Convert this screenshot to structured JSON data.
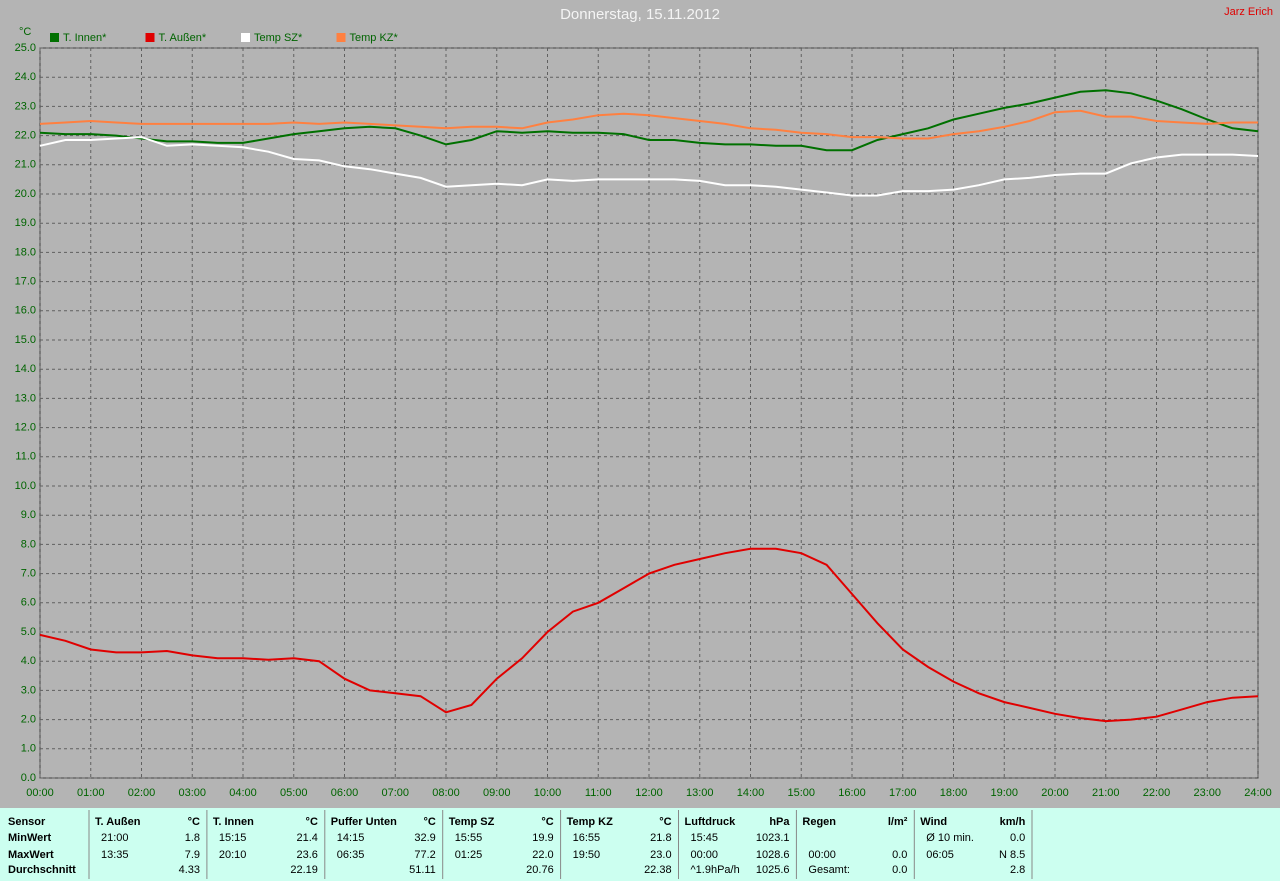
{
  "chart_data": {
    "type": "line",
    "title": "Donnerstag, 15.11.2012",
    "author": "Jarz Erich",
    "y_label": "°C",
    "x": [
      0,
      0.5,
      1,
      1.5,
      2,
      2.5,
      3,
      3.5,
      4,
      4.5,
      5,
      5.5,
      6,
      6.5,
      7,
      7.5,
      8,
      8.5,
      9,
      9.5,
      10,
      10.5,
      11,
      11.5,
      12,
      12.5,
      13,
      13.5,
      14,
      14.5,
      15,
      15.5,
      16,
      16.5,
      17,
      17.5,
      18,
      18.5,
      19,
      19.5,
      20,
      20.5,
      21,
      21.5,
      22,
      22.5,
      23,
      23.5,
      24
    ],
    "series": [
      {
        "name": "T. Innen*",
        "color": "#007000",
        "values": [
          22.1,
          22.05,
          22.05,
          22.0,
          21.9,
          21.8,
          21.8,
          21.75,
          21.75,
          21.9,
          22.05,
          22.15,
          22.25,
          22.3,
          22.25,
          22.0,
          21.7,
          21.85,
          22.15,
          22.1,
          22.15,
          22.1,
          22.1,
          22.05,
          21.85,
          21.85,
          21.75,
          21.7,
          21.7,
          21.65,
          21.65,
          21.5,
          21.5,
          21.85,
          22.05,
          22.25,
          22.55,
          22.75,
          22.95,
          23.1,
          23.3,
          23.5,
          23.55,
          23.45,
          23.2,
          22.9,
          22.55,
          22.25,
          22.15
        ]
      },
      {
        "name": "T. Außen*",
        "color": "#e00000",
        "values": [
          4.9,
          4.7,
          4.4,
          4.3,
          4.3,
          4.35,
          4.2,
          4.1,
          4.1,
          4.05,
          4.1,
          4.0,
          3.4,
          3.0,
          2.9,
          2.8,
          2.25,
          2.5,
          3.4,
          4.1,
          5.0,
          5.7,
          6.0,
          6.5,
          7.0,
          7.3,
          7.5,
          7.7,
          7.85,
          7.85,
          7.7,
          7.3,
          6.3,
          5.3,
          4.4,
          3.8,
          3.3,
          2.9,
          2.6,
          2.4,
          2.2,
          2.05,
          1.95,
          2.0,
          2.1,
          2.35,
          2.6,
          2.75,
          2.8
        ]
      },
      {
        "name": "Temp SZ*",
        "color": "#ffffff",
        "values": [
          21.65,
          21.85,
          21.85,
          21.9,
          21.95,
          21.65,
          21.7,
          21.65,
          21.6,
          21.45,
          21.2,
          21.15,
          20.95,
          20.85,
          20.7,
          20.55,
          20.25,
          20.3,
          20.35,
          20.3,
          20.5,
          20.45,
          20.5,
          20.5,
          20.5,
          20.5,
          20.45,
          20.3,
          20.3,
          20.25,
          20.15,
          20.05,
          19.95,
          19.95,
          20.1,
          20.1,
          20.15,
          20.3,
          20.5,
          20.55,
          20.65,
          20.7,
          20.7,
          21.05,
          21.25,
          21.35,
          21.35,
          21.35,
          21.3
        ]
      },
      {
        "name": "Temp KZ*",
        "color": "#ff8040",
        "values": [
          22.4,
          22.45,
          22.5,
          22.45,
          22.4,
          22.4,
          22.4,
          22.4,
          22.4,
          22.4,
          22.45,
          22.4,
          22.45,
          22.4,
          22.35,
          22.3,
          22.25,
          22.3,
          22.3,
          22.25,
          22.45,
          22.55,
          22.7,
          22.75,
          22.7,
          22.6,
          22.5,
          22.4,
          22.25,
          22.2,
          22.1,
          22.05,
          21.95,
          21.95,
          21.9,
          21.9,
          22.05,
          22.15,
          22.3,
          22.5,
          22.8,
          22.85,
          22.65,
          22.65,
          22.5,
          22.45,
          22.4,
          22.45,
          22.45
        ]
      }
    ],
    "xlim": [
      0,
      24
    ],
    "xticks": [
      {
        "value": 0,
        "label": "00:00"
      },
      {
        "value": 1,
        "label": "01:00"
      },
      {
        "value": 2,
        "label": "02:00"
      },
      {
        "value": 3,
        "label": "03:00"
      },
      {
        "value": 4,
        "label": "04:00"
      },
      {
        "value": 5,
        "label": "05:00"
      },
      {
        "value": 6,
        "label": "06:00"
      },
      {
        "value": 7,
        "label": "07:00"
      },
      {
        "value": 8,
        "label": "08:00"
      },
      {
        "value": 9,
        "label": "09:00"
      },
      {
        "value": 10,
        "label": "10:00"
      },
      {
        "value": 11,
        "label": "11:00"
      },
      {
        "value": 12,
        "label": "12:00"
      },
      {
        "value": 13,
        "label": "13:00"
      },
      {
        "value": 14,
        "label": "14:00"
      },
      {
        "value": 15,
        "label": "15:00"
      },
      {
        "value": 16,
        "label": "16:00"
      },
      {
        "value": 17,
        "label": "17:00"
      },
      {
        "value": 18,
        "label": "18:00"
      },
      {
        "value": 19,
        "label": "19:00"
      },
      {
        "value": 20,
        "label": "20:00"
      },
      {
        "value": 21,
        "label": "21:00"
      },
      {
        "value": 22,
        "label": "22:00"
      },
      {
        "value": 23,
        "label": "23:00"
      },
      {
        "value": 24,
        "label": "24:00"
      }
    ],
    "ylim": [
      0,
      25
    ],
    "yticks": [
      {
        "value": 0,
        "label": "0.0"
      },
      {
        "value": 1,
        "label": "1.0"
      },
      {
        "value": 2,
        "label": "2.0"
      },
      {
        "value": 3,
        "label": "3.0"
      },
      {
        "value": 4,
        "label": "4.0"
      },
      {
        "value": 5,
        "label": "5.0"
      },
      {
        "value": 6,
        "label": "6.0"
      },
      {
        "value": 7,
        "label": "7.0"
      },
      {
        "value": 8,
        "label": "8.0"
      },
      {
        "value": 9,
        "label": "9.0"
      },
      {
        "value": 10,
        "label": "10.0"
      },
      {
        "value": 11,
        "label": "11.0"
      },
      {
        "value": 12,
        "label": "12.0"
      },
      {
        "value": 13,
        "label": "13.0"
      },
      {
        "value": 14,
        "label": "14.0"
      },
      {
        "value": 15,
        "label": "15.0"
      },
      {
        "value": 16,
        "label": "16.0"
      },
      {
        "value": 17,
        "label": "17.0"
      },
      {
        "value": 18,
        "label": "18.0"
      },
      {
        "value": 19,
        "label": "19.0"
      },
      {
        "value": 20,
        "label": "20.0"
      },
      {
        "value": 21,
        "label": "21.0"
      },
      {
        "value": 22,
        "label": "22.0"
      },
      {
        "value": 23,
        "label": "23.0"
      },
      {
        "value": 24,
        "label": "24.0"
      },
      {
        "value": 25,
        "label": "25.0"
      }
    ],
    "grid": true
  },
  "table": {
    "row_labels": [
      "Sensor",
      "MinWert",
      "MaxWert",
      "Durchschnitt"
    ],
    "groups": [
      {
        "name": "T. Außen",
        "unit": "°C",
        "rows": [
          [
            "21:00",
            "1.8"
          ],
          [
            "13:35",
            "7.9"
          ],
          [
            "4.33"
          ]
        ]
      },
      {
        "name": "T. Innen",
        "unit": "°C",
        "rows": [
          [
            "15:15",
            "21.4"
          ],
          [
            "20:10",
            "23.6"
          ],
          [
            "22.19"
          ]
        ]
      },
      {
        "name": "Puffer Unten",
        "unit": "°C",
        "rows": [
          [
            "14:15",
            "32.9"
          ],
          [
            "06:35",
            "77.2"
          ],
          [
            "51.11"
          ]
        ]
      },
      {
        "name": "Temp SZ",
        "unit": "°C",
        "rows": [
          [
            "15:55",
            "19.9"
          ],
          [
            "01:25",
            "22.0"
          ],
          [
            "20.76"
          ]
        ]
      },
      {
        "name": "Temp KZ",
        "unit": "°C",
        "rows": [
          [
            "16:55",
            "21.8"
          ],
          [
            "19:50",
            "23.0"
          ],
          [
            "22.38"
          ]
        ]
      },
      {
        "name": "Luftdruck",
        "unit": "hPa",
        "rows": [
          [
            "15:45",
            "1023.1"
          ],
          [
            "00:00",
            "1028.6"
          ],
          [
            "^1.9hPa/h",
            "1025.6"
          ]
        ]
      },
      {
        "name": "Regen",
        "unit": "l/m²",
        "rows": [
          [],
          [
            "00:00",
            "0.0"
          ],
          [
            "Gesamt:",
            "0.0"
          ]
        ]
      },
      {
        "name": "Wind",
        "unit": "km/h",
        "rows": [
          [
            "Ø 10 min.",
            "0.0"
          ],
          [
            "06:05",
            "N 8.5"
          ],
          [
            "2.8"
          ]
        ]
      }
    ]
  }
}
